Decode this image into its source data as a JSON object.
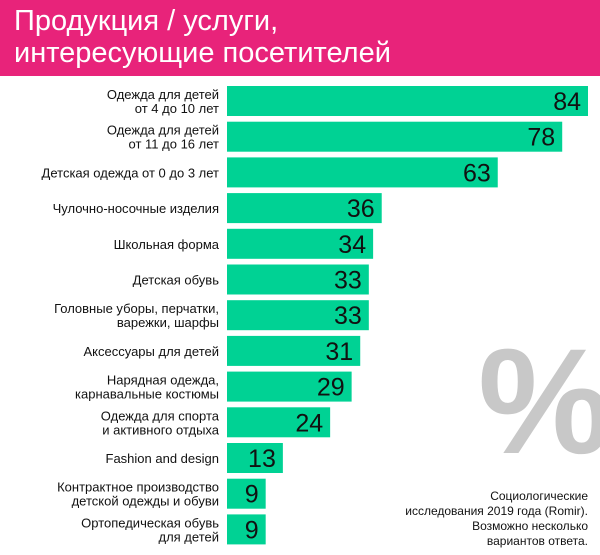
{
  "header": {
    "title_line1": "Продукция / услуги,",
    "title_line2": "интересующие посетителей"
  },
  "colors": {
    "header_bg": "#e8237a",
    "bar": "#00d294",
    "value_text": "#111111"
  },
  "percent_symbol": "%",
  "note": {
    "lines": [
      "Социологические",
      "исследования 2019 года (Romir).",
      "Возможно несколько",
      "вариантов ответа."
    ]
  },
  "chart_data": {
    "type": "bar",
    "orientation": "horizontal",
    "categories": [
      [
        "Одежда для детей",
        "от 4 до 10 лет"
      ],
      [
        "Одежда для детей",
        "от 11 до 16 лет"
      ],
      [
        "Детская одежда от 0 до 3 лет"
      ],
      [
        "Чулочно-носочные изделия"
      ],
      [
        "Школьная форма"
      ],
      [
        "Детская обувь"
      ],
      [
        "Головные уборы, перчатки,",
        "варежки, шарфы"
      ],
      [
        "Аксессуары для детей"
      ],
      [
        "Нарядная одежда,",
        "карнавальные костюмы"
      ],
      [
        "Одежда для спорта",
        "и активного отдыха"
      ],
      [
        "Fashion and design"
      ],
      [
        "Контрактное производство",
        "детской одежды и обуви"
      ],
      [
        "Ортопедическая обувь",
        "для детей"
      ]
    ],
    "values": [
      84,
      78,
      63,
      36,
      34,
      33,
      33,
      31,
      29,
      24,
      13,
      9,
      9
    ],
    "value_unit": "%",
    "title": "",
    "xlabel": "",
    "ylabel": "",
    "xlim": [
      0,
      84
    ],
    "grid": false,
    "legend": "none"
  }
}
